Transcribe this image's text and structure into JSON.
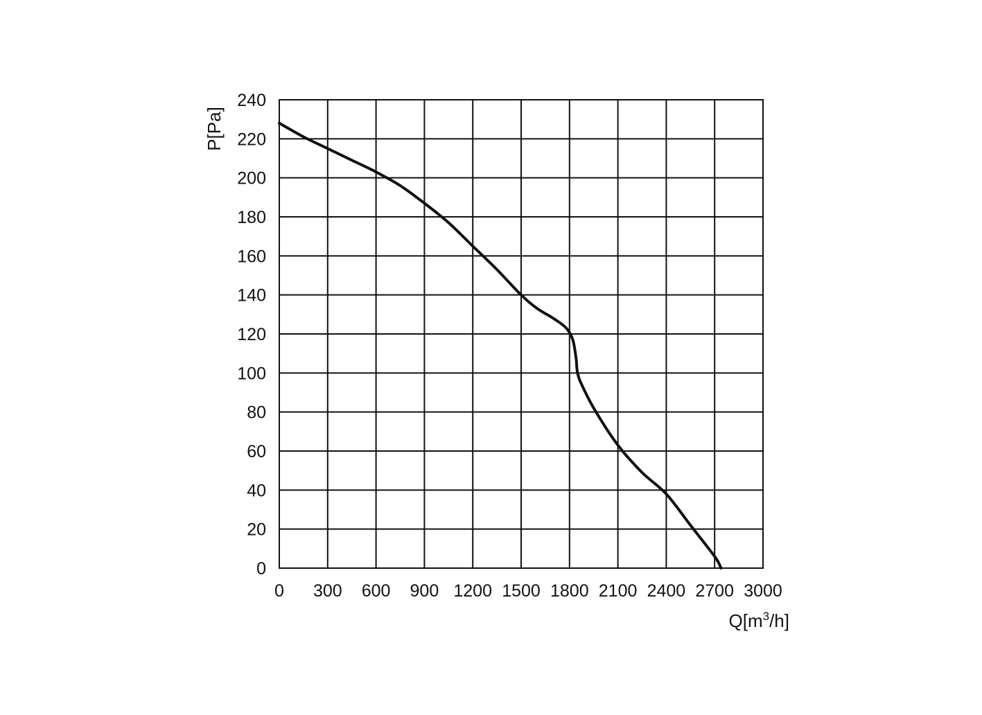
{
  "chart_data": {
    "type": "line",
    "title": "",
    "xlabel": "Q[m",
    "xlabel_sup": "3",
    "xlabel_tail": "/h]",
    "ylabel": "P[Pa]",
    "xlim": [
      0,
      3000
    ],
    "ylim": [
      0,
      240
    ],
    "x_ticks": [
      "0",
      "300",
      "600",
      "900",
      "1200",
      "1500",
      "1800",
      "2100",
      "2400",
      "2700",
      "3000"
    ],
    "y_ticks": [
      "0",
      "20",
      "40",
      "60",
      "80",
      "100",
      "120",
      "140",
      "160",
      "180",
      "200",
      "220",
      "240"
    ],
    "grid": true,
    "line_color": "#111111",
    "series": [
      {
        "x": [
          0,
          150,
          300,
          450,
          600,
          750,
          900,
          1050,
          1200,
          1350,
          1500,
          1600,
          1700,
          1780,
          1820,
          1840,
          1845,
          1850,
          1870,
          1950,
          2100,
          2250,
          2400,
          2550,
          2700,
          2740
        ],
        "y": [
          228,
          221,
          215,
          209,
          203,
          196,
          187,
          177,
          165,
          153,
          140,
          133,
          128,
          123,
          117,
          108,
          103,
          100,
          95,
          82,
          63,
          49,
          38,
          22,
          6,
          0
        ]
      }
    ]
  }
}
